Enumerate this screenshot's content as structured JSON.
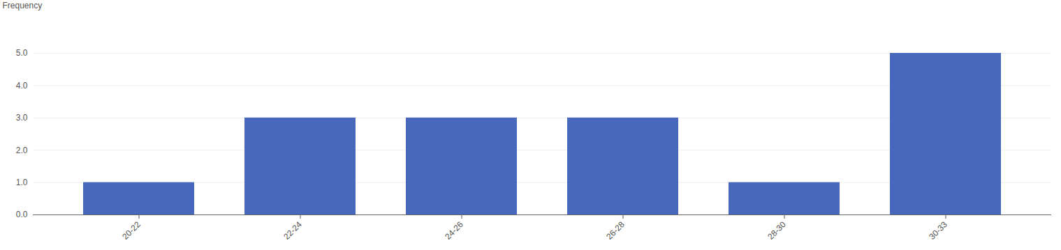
{
  "chart_data": {
    "type": "bar",
    "y_label": "Frequency",
    "categories": [
      "20-22",
      "22-24",
      "24-26",
      "26-28",
      "28-30",
      "30-33"
    ],
    "values": [
      1,
      3,
      3,
      3,
      1,
      5
    ],
    "color": "#4868bd",
    "ylim": [
      0,
      5
    ],
    "yticks": [
      0,
      1,
      2,
      3,
      4,
      5
    ],
    "grid": true
  }
}
